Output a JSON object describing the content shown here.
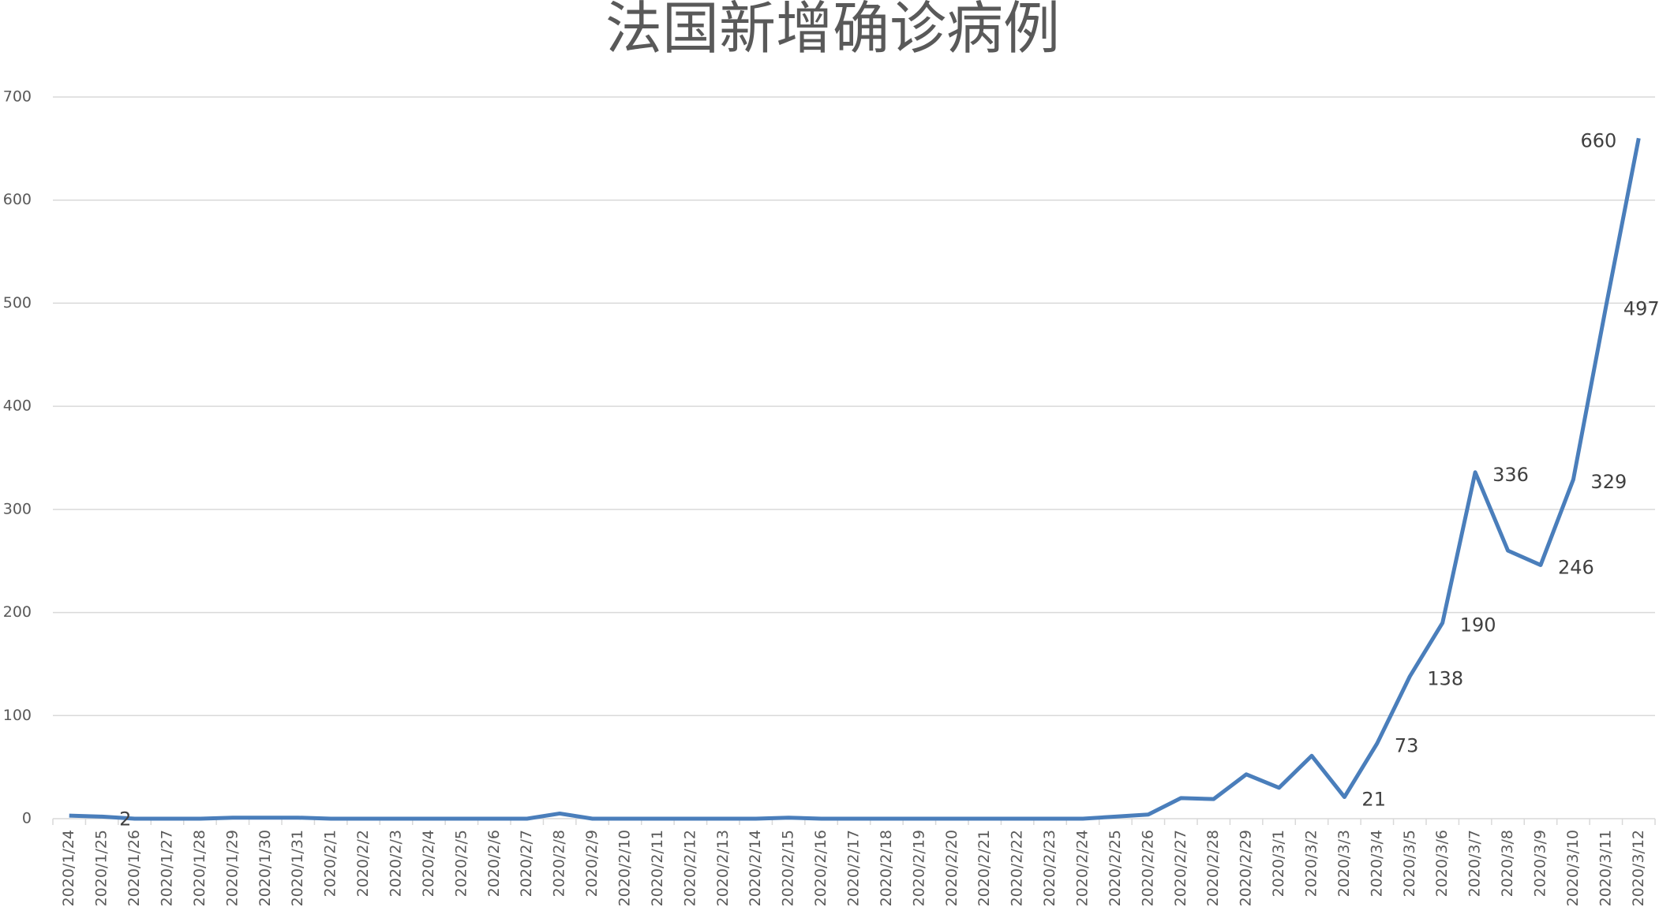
{
  "chart_data": {
    "type": "line",
    "title": "法国新增确诊病例",
    "categories": [
      "2020/1/24",
      "2020/1/25",
      "2020/1/26",
      "2020/1/27",
      "2020/1/28",
      "2020/1/29",
      "2020/1/30",
      "2020/1/31",
      "2020/2/1",
      "2020/2/2",
      "2020/2/3",
      "2020/2/4",
      "2020/2/5",
      "2020/2/6",
      "2020/2/7",
      "2020/2/8",
      "2020/2/9",
      "2020/2/10",
      "2020/2/11",
      "2020/2/12",
      "2020/2/13",
      "2020/2/14",
      "2020/2/15",
      "2020/2/16",
      "2020/2/17",
      "2020/2/18",
      "2020/2/19",
      "2020/2/20",
      "2020/2/21",
      "2020/2/22",
      "2020/2/23",
      "2020/2/24",
      "2020/2/25",
      "2020/2/26",
      "2020/2/27",
      "2020/2/28",
      "2020/2/29",
      "2020/3/1",
      "2020/3/2",
      "2020/3/3",
      "2020/3/4",
      "2020/3/5",
      "2020/3/6",
      "2020/3/7",
      "2020/3/8",
      "2020/3/9",
      "2020/3/10",
      "2020/3/11",
      "2020/3/12"
    ],
    "values": [
      3,
      2,
      0,
      0,
      0,
      1,
      1,
      1,
      0,
      0,
      0,
      0,
      0,
      0,
      0,
      5,
      0,
      0,
      0,
      0,
      0,
      0,
      1,
      0,
      0,
      0,
      0,
      0,
      0,
      0,
      0,
      0,
      2,
      4,
      20,
      19,
      43,
      30,
      61,
      21,
      73,
      138,
      190,
      336,
      260,
      246,
      329,
      497,
      660
    ],
    "value_labels": [
      null,
      "2",
      null,
      null,
      null,
      null,
      null,
      null,
      null,
      null,
      null,
      null,
      null,
      null,
      null,
      null,
      null,
      null,
      null,
      null,
      null,
      null,
      null,
      null,
      null,
      null,
      null,
      null,
      null,
      null,
      null,
      null,
      null,
      null,
      null,
      null,
      null,
      null,
      null,
      "21",
      "73",
      "138",
      "190",
      "336",
      null,
      "246",
      "329",
      "497",
      "660"
    ],
    "color": "#4a7ebb",
    "ylim": [
      0,
      700
    ],
    "yticks": [
      0,
      100,
      200,
      300,
      400,
      500,
      600,
      700
    ],
    "grid": true
  }
}
